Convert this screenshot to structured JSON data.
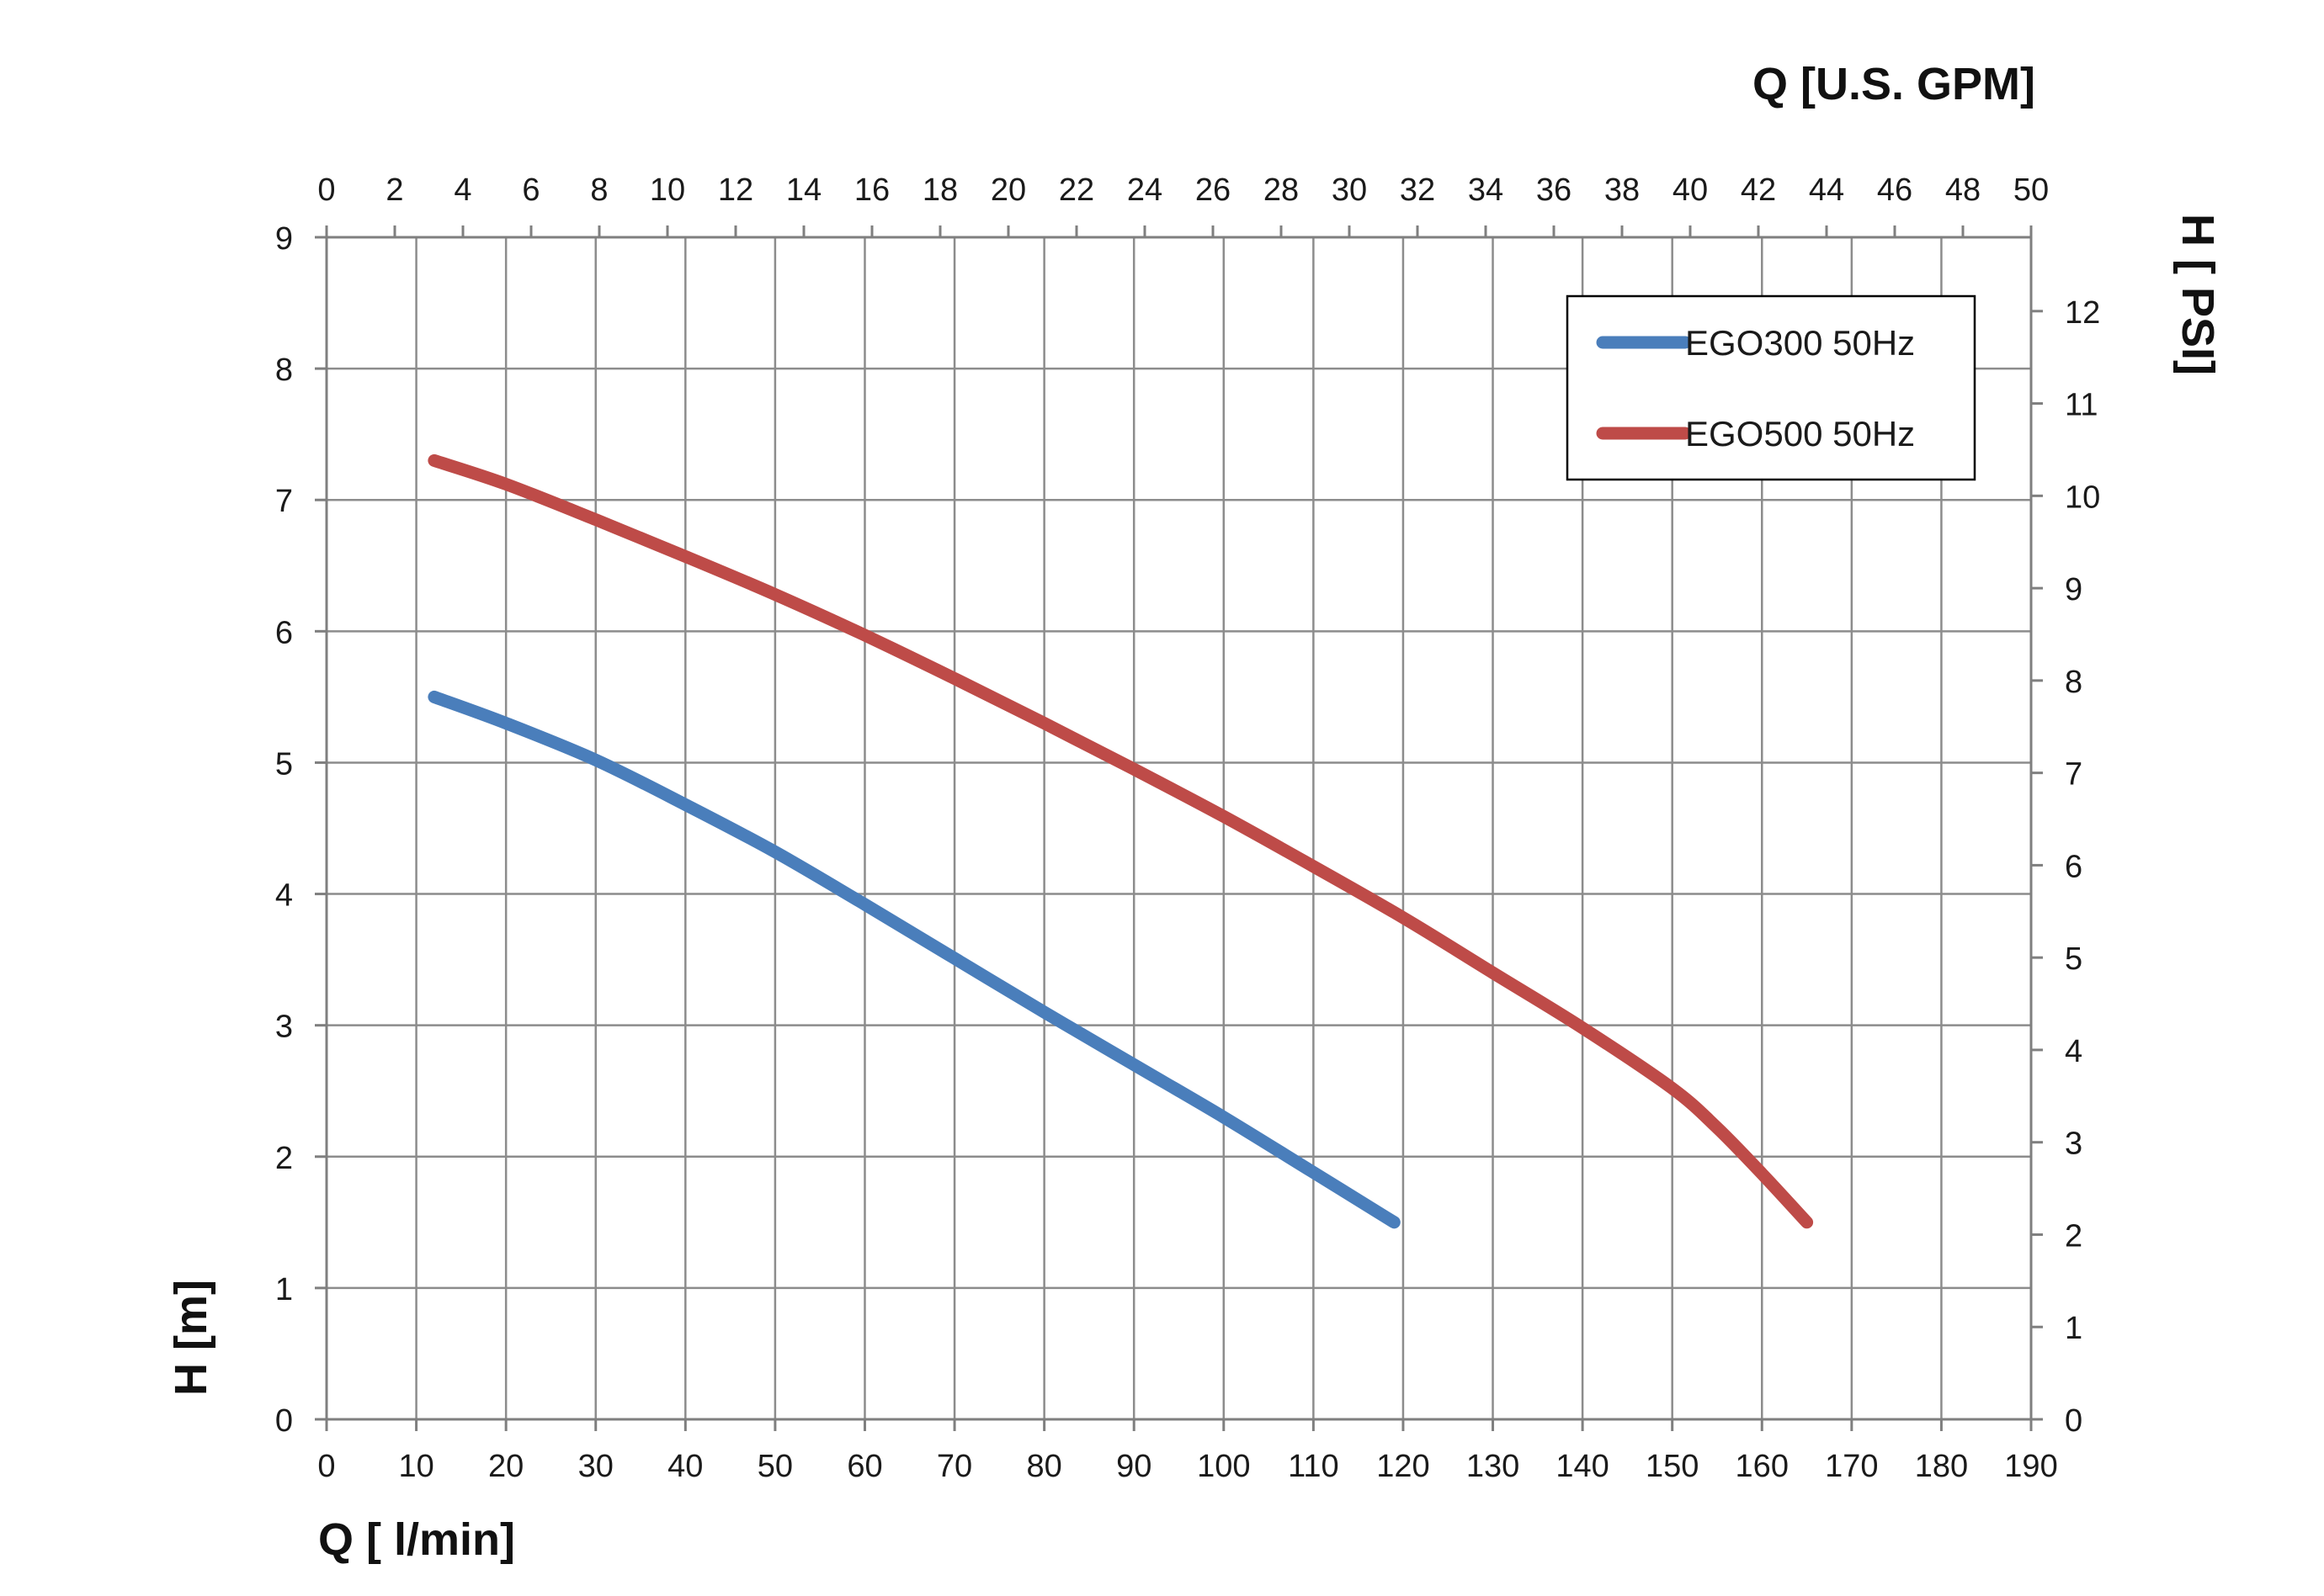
{
  "chart_data": {
    "type": "line",
    "title": "",
    "xlabel": "Q [ l/min]",
    "ylabel": "H [m]",
    "x2label": "Q  [U.S. GPM]",
    "y2label": "H [ PSI]",
    "xlim": [
      0,
      190
    ],
    "ylim": [
      0,
      9
    ],
    "x2lim": [
      0,
      50
    ],
    "y2lim": [
      0,
      12.8
    ],
    "x_ticks": [
      "0",
      "10",
      "20",
      "30",
      "40",
      "50",
      "60",
      "70",
      "80",
      "90",
      "100",
      "110",
      "120",
      "130",
      "140",
      "150",
      "160",
      "170",
      "180",
      "190"
    ],
    "y_ticks": [
      "0",
      "1",
      "2",
      "3",
      "4",
      "5",
      "6",
      "7",
      "8",
      "9"
    ],
    "x2_ticks": [
      "0",
      "2",
      "4",
      "6",
      "8",
      "10",
      "12",
      "14",
      "16",
      "18",
      "20",
      "22",
      "24",
      "26",
      "28",
      "30",
      "32",
      "34",
      "36",
      "38",
      "40",
      "42",
      "44",
      "46",
      "48",
      "50"
    ],
    "y2_ticks": [
      "0",
      "1",
      "2",
      "3",
      "4",
      "5",
      "6",
      "7",
      "8",
      "9",
      "10",
      "11",
      "12"
    ],
    "grid": true,
    "legend": "top-right",
    "series": [
      {
        "name": "EGO300 50Hz",
        "color": "#4a7ebb",
        "x": [
          12,
          20,
          30,
          40,
          50,
          60,
          70,
          80,
          90,
          100,
          110,
          119
        ],
        "y": [
          5.5,
          5.3,
          5.02,
          4.68,
          4.32,
          3.92,
          3.51,
          3.1,
          2.7,
          2.3,
          1.88,
          1.5
        ]
      },
      {
        "name": "EGO500 50Hz",
        "color": "#be4b48",
        "x": [
          12,
          20,
          30,
          40,
          50,
          60,
          70,
          80,
          90,
          100,
          110,
          120,
          130,
          140,
          150,
          155,
          160,
          165
        ],
        "y": [
          7.3,
          7.12,
          6.85,
          6.57,
          6.28,
          5.97,
          5.64,
          5.3,
          4.95,
          4.59,
          4.21,
          3.82,
          3.4,
          2.98,
          2.52,
          2.22,
          1.87,
          1.5
        ]
      }
    ]
  }
}
